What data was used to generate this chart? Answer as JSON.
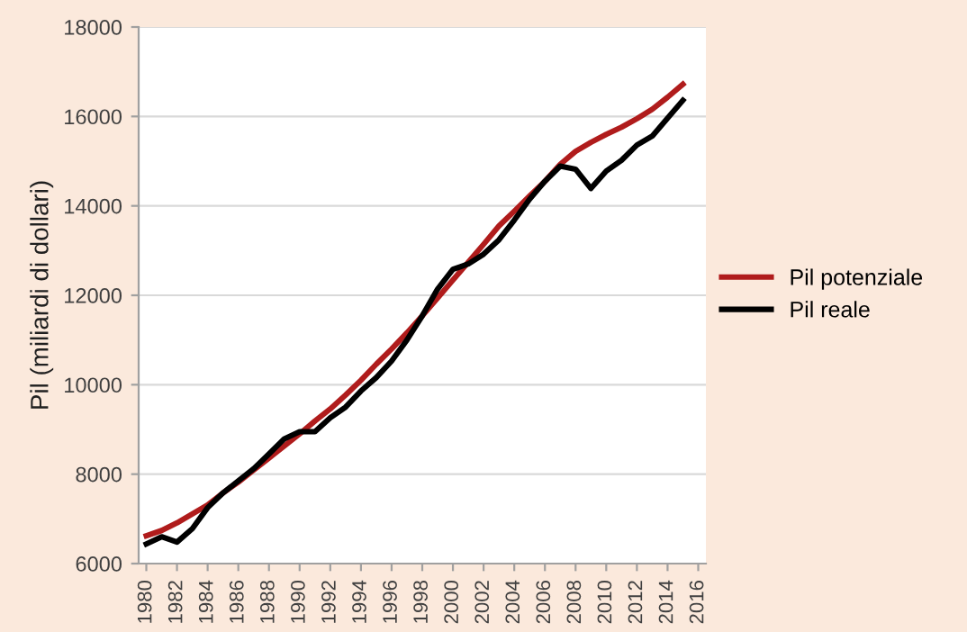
{
  "chart_data": {
    "type": "line",
    "ylabel": "Pil (miliardi di dollari)",
    "x": [
      1980,
      1981,
      1982,
      1983,
      1984,
      1985,
      1986,
      1987,
      1988,
      1989,
      1990,
      1991,
      1992,
      1993,
      1994,
      1995,
      1996,
      1997,
      1998,
      1999,
      2000,
      2001,
      2002,
      2003,
      2004,
      2005,
      2006,
      2007,
      2008,
      2009,
      2010,
      2011,
      2012,
      2013,
      2014,
      2015
    ],
    "series": [
      {
        "name": "Pil potenziale",
        "color": "#b01c1c",
        "values": [
          6620,
          6740,
          6910,
          7110,
          7310,
          7580,
          7820,
          8090,
          8360,
          8630,
          8900,
          9190,
          9460,
          9770,
          10100,
          10460,
          10800,
          11160,
          11540,
          11940,
          12340,
          12740,
          13140,
          13550,
          13880,
          14220,
          14550,
          14930,
          15220,
          15420,
          15600,
          15760,
          15950,
          16160,
          16430,
          16720
        ]
      },
      {
        "name": "Pil reale",
        "color": "#000000",
        "values": [
          6440,
          6600,
          6480,
          6780,
          7250,
          7580,
          7850,
          8120,
          8450,
          8790,
          8950,
          8950,
          9260,
          9500,
          9860,
          10160,
          10530,
          11000,
          11540,
          12140,
          12580,
          12700,
          12920,
          13240,
          13680,
          14150,
          14550,
          14890,
          14820,
          14390,
          14780,
          15020,
          15360,
          15560,
          15960,
          16360
        ]
      }
    ],
    "xlim": [
      1979.5,
      2016.5
    ],
    "xticks": [
      1980,
      1982,
      1984,
      1986,
      1988,
      1990,
      1992,
      1994,
      1996,
      1998,
      2000,
      2002,
      2004,
      2006,
      2008,
      2010,
      2012,
      2014,
      2016
    ],
    "ylim": [
      6000,
      18000
    ],
    "yticks": [
      6000,
      8000,
      10000,
      12000,
      14000,
      16000,
      18000
    ],
    "grid": "y",
    "legend": "right",
    "marker": "none",
    "line_style": "solid"
  }
}
